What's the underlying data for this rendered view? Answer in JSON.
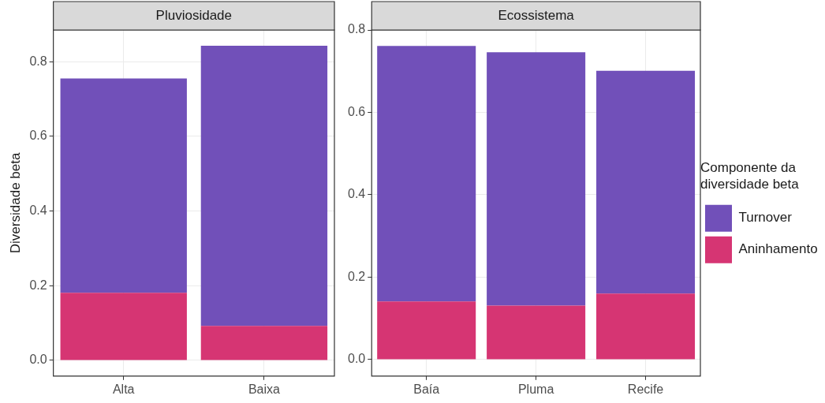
{
  "chart_data": [
    {
      "type": "bar",
      "title": "Pluviosidade",
      "ylabel": "Diversidade beta",
      "categories": [
        "Alta",
        "Baixa"
      ],
      "stacked": true,
      "grid": true,
      "legend": false,
      "ylim": [
        -0.042,
        0.885
      ],
      "yticks": [
        {
          "value": 0,
          "label": "0.0"
        },
        0.2,
        0.4,
        0.6,
        0.8
      ],
      "series": [
        {
          "color": "#d63573",
          "values": [
            0.181,
            0.092
          ]
        },
        {
          "color": "#7150b9",
          "values": [
            0.574,
            0.751
          ]
        }
      ]
    },
    {
      "type": "bar",
      "title": "Ecossistema",
      "categories": [
        "Baía",
        "Pluma",
        "Recife"
      ],
      "stacked": true,
      "grid": true,
      "legend": "right",
      "legend_title": "Componente da diversidade beta",
      "ylim": [
        -0.04,
        0.8
      ],
      "yticks": [
        {
          "value": 0,
          "label": "0.0"
        },
        0.2,
        0.4,
        0.6,
        0.8
      ],
      "series": [
        {
          "name": "Aninhamento",
          "color": "#d63573",
          "values": [
            0.141,
            0.131,
            0.16
          ]
        },
        {
          "name": "Turnover",
          "color": "#7150b9",
          "values": [
            0.62,
            0.615,
            0.541
          ]
        }
      ]
    }
  ]
}
